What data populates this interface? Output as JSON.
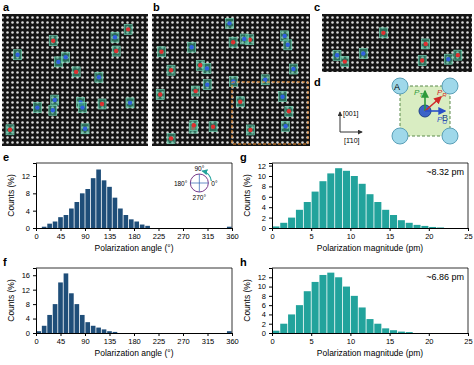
{
  "panels": {
    "labels": [
      "a",
      "b",
      "c",
      "d"
    ],
    "diagram": {
      "atoms": [
        "A",
        "B"
      ],
      "vectors": [
        {
          "text": "P",
          "sub": "T"
        },
        {
          "text": "P",
          "sub": "R"
        },
        {
          "text": "P",
          "sub": "O"
        }
      ],
      "directions": [
        "[001]",
        "[1̄10]"
      ]
    }
  },
  "chart_data": [
    {
      "type": "histogram",
      "panel_label": "e",
      "xlabel": "Polarization angle (°)",
      "ylabel": "Counts (%)",
      "color": "#1f4e79",
      "bins": [
        0,
        10,
        20,
        30,
        40,
        50,
        60,
        70,
        80,
        90,
        100,
        110,
        120,
        130,
        140,
        150,
        160,
        170,
        180,
        190,
        200,
        210,
        220,
        230,
        240,
        250,
        260,
        270,
        280,
        290,
        300,
        310,
        320,
        330,
        340,
        350,
        360
      ],
      "values": [
        0,
        0.3,
        1,
        1.5,
        2.5,
        3,
        4.5,
        6,
        8,
        9,
        11.5,
        13.5,
        11,
        9.5,
        7,
        4.5,
        3,
        2,
        1.5,
        0.8,
        0.5,
        0,
        0,
        0,
        0,
        0,
        0,
        0,
        0,
        0,
        0,
        0,
        0,
        0,
        0,
        0.3
      ],
      "xlim": [
        0,
        360
      ],
      "ylim": [
        0,
        15
      ],
      "xticks": [
        0,
        45,
        90,
        135,
        180,
        225,
        270,
        315,
        360
      ],
      "yticks": [
        0,
        4,
        8,
        12
      ],
      "inset_labels": [
        "90°",
        "0°",
        "180°",
        "270°"
      ]
    },
    {
      "type": "histogram",
      "panel_label": "f",
      "xlabel": "Polarization angle (°)",
      "ylabel": "Counts (%)",
      "color": "#1f4e79",
      "bins": [
        0,
        10,
        20,
        30,
        40,
        50,
        60,
        70,
        80,
        90,
        100,
        110,
        120,
        130,
        140,
        150,
        160,
        170,
        180,
        190,
        200,
        210,
        220,
        230,
        240,
        250,
        260,
        270,
        280,
        290,
        300,
        310,
        320,
        330,
        340,
        350,
        360
      ],
      "values": [
        0.5,
        2,
        5,
        8,
        14,
        16.5,
        11,
        8,
        5,
        3,
        2,
        1.5,
        1,
        0.5,
        0.3,
        0,
        0,
        0,
        0,
        0,
        0,
        0,
        0,
        0,
        0,
        0,
        0,
        0,
        0,
        0,
        0,
        0,
        0,
        0,
        0,
        0.5
      ],
      "xlim": [
        0,
        360
      ],
      "ylim": [
        0,
        18
      ],
      "xticks": [
        0,
        45,
        90,
        135,
        180,
        225,
        270,
        315,
        360
      ],
      "yticks": [
        0,
        4,
        8,
        12,
        16
      ]
    },
    {
      "type": "histogram",
      "panel_label": "g",
      "xlabel": "Polarization magnitude (pm)",
      "ylabel": "Counts (%)",
      "color": "#22a39c",
      "bins": [
        0,
        1,
        2,
        3,
        4,
        5,
        6,
        7,
        8,
        9,
        10,
        11,
        12,
        13,
        14,
        15,
        16,
        17,
        18,
        19,
        20,
        21,
        22,
        23,
        24,
        25
      ],
      "values": [
        0.3,
        1,
        2,
        3.5,
        5,
        7,
        9,
        10.5,
        11.5,
        11,
        10,
        8.5,
        6.5,
        5,
        3.5,
        2.5,
        1.5,
        1,
        0.6,
        0.4,
        0.2,
        0.1,
        0,
        0,
        0
      ],
      "xlim": [
        0,
        25
      ],
      "ylim": [
        0,
        12.5
      ],
      "xticks": [
        0,
        5,
        10,
        15,
        20,
        25
      ],
      "yticks": [
        0,
        2,
        4,
        6,
        8,
        10,
        12
      ],
      "annotation": "~8.32 pm"
    },
    {
      "type": "histogram",
      "panel_label": "h",
      "xlabel": "Polarization magnitude (pm)",
      "ylabel": "Counts (%)",
      "color": "#22a39c",
      "bins": [
        0,
        1,
        2,
        3,
        4,
        5,
        6,
        7,
        8,
        9,
        10,
        11,
        12,
        13,
        14,
        15,
        16,
        17,
        18,
        19,
        20,
        21,
        22,
        23,
        24,
        25
      ],
      "values": [
        0.5,
        2,
        4,
        6,
        9,
        11,
        12.5,
        13,
        12,
        10,
        8,
        5.5,
        3,
        2,
        1,
        0.6,
        0.3,
        0.2,
        0,
        0,
        0,
        0,
        0,
        0,
        0
      ],
      "xlim": [
        0,
        25
      ],
      "ylim": [
        0,
        14
      ],
      "xticks": [
        0,
        5,
        10,
        15,
        20,
        25
      ],
      "yticks": [
        0,
        2,
        4,
        6,
        8,
        10,
        12
      ],
      "annotation": "~6.86 pm"
    }
  ]
}
